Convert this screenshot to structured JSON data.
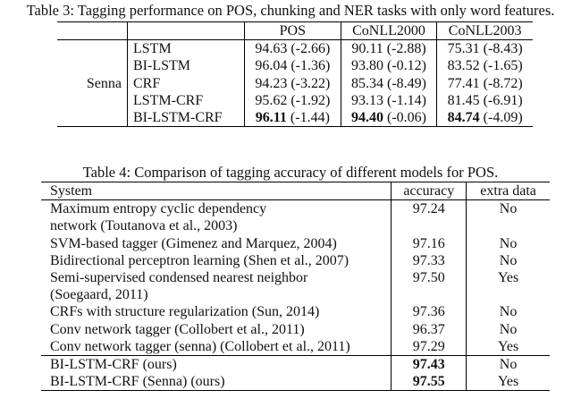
{
  "table3": {
    "caption": "Table 3: Tagging performance on POS, chunking and NER tasks with only word features.",
    "headers": [
      "",
      "",
      "POS",
      "CoNLL2000",
      "CoNLL2003"
    ],
    "feature_group": "Senna",
    "rows": [
      {
        "model": "LSTM",
        "pos": "94.63 (-2.66)",
        "conll2000": "90.11 (-2.88)",
        "conll2003": "75.31 (-8.43)",
        "best": false
      },
      {
        "model": "BI-LSTM",
        "pos": "96.04 (-1.36)",
        "conll2000": "93.80 (-0.12)",
        "conll2003": "83.52 (-1.65)",
        "best": false
      },
      {
        "model": "CRF",
        "pos": "94.23 (-3.22)",
        "conll2000": "85.34 (-8.49)",
        "conll2003": "77.41 (-8.72)",
        "best": false
      },
      {
        "model": "LSTM-CRF",
        "pos": "95.62 (-1.92)",
        "conll2000": "93.13 (-1.14)",
        "conll2003": "81.45 (-6.91)",
        "best": false
      },
      {
        "model": "BI-LSTM-CRF",
        "pos_bold": "96.11",
        "pos_rest": " (-1.44)",
        "conll2000_bold": "94.40",
        "conll2000_rest": " (-0.06)",
        "conll2003_bold": "84.74",
        "conll2003_rest": " (-4.09)",
        "best": true
      }
    ]
  },
  "table4": {
    "caption": "Table 4: Comparison of tagging accuracy of different models for POS.",
    "headers": {
      "system": "System",
      "accuracy": "accuracy",
      "extra": "extra data"
    },
    "rows": [
      {
        "system": "Maximum entropy cyclic dependency",
        "accuracy": "97.24",
        "extra": "No"
      },
      {
        "system": "network (Toutanova et al., 2003)",
        "accuracy": "",
        "extra": ""
      },
      {
        "system": "SVM-based tagger (Gimenez and Marquez, 2004)",
        "accuracy": "97.16",
        "extra": "No"
      },
      {
        "system": "Bidirectional perceptron learning (Shen et al., 2007)",
        "accuracy": "97.33",
        "extra": "No"
      },
      {
        "system": "Semi-supervised condensed nearest neighbor",
        "accuracy": "97.50",
        "extra": "Yes"
      },
      {
        "system": "(Soegaard, 2011)",
        "accuracy": "",
        "extra": ""
      },
      {
        "system": "CRFs with structure regularization (Sun, 2014)",
        "accuracy": "97.36",
        "extra": "No"
      },
      {
        "system": "Conv network tagger (Collobert et al., 2011)",
        "accuracy": "96.37",
        "extra": "No"
      },
      {
        "system": "Conv network tagger (senna) (Collobert et al., 2011)",
        "accuracy": "97.29",
        "extra": "Yes"
      },
      {
        "system": "BI-LSTM-CRF (ours)",
        "accuracy": "97.43",
        "extra": "No"
      },
      {
        "system": "BI-LSTM-CRF (Senna) (ours)",
        "accuracy": "97.55",
        "extra": "Yes"
      }
    ]
  }
}
